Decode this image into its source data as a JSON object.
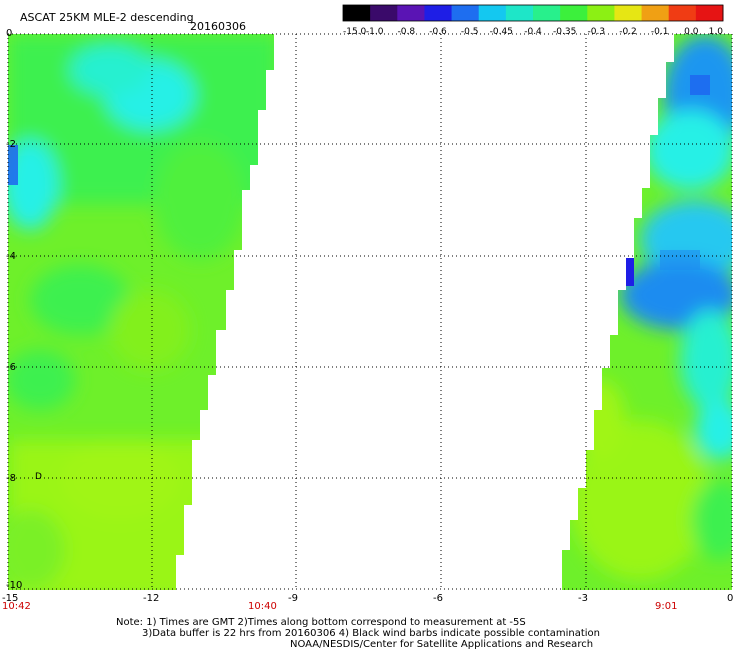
{
  "header": {
    "title": "ASCAT 25KM MLE-2 descending",
    "date": "20160306"
  },
  "colorbar": {
    "labels": [
      "-15.0",
      "-1.0",
      "-0.8",
      "-0.6",
      "-0.5",
      "-0.45",
      "-0.4",
      "-0.35",
      "-0.3",
      "-0.2",
      "-0.1",
      "0.0",
      "1.0"
    ],
    "colors": [
      "#000000",
      "#3a0a6a",
      "#5a14b4",
      "#1e1ee6",
      "#1e6ef0",
      "#14c8f0",
      "#1ee6c8",
      "#28f08c",
      "#3cf03c",
      "#8cf014",
      "#e6e614",
      "#f0a014",
      "#f03c14",
      "#e61414"
    ]
  },
  "axes": {
    "x_labels": [
      "-15",
      "-12",
      "-9",
      "-6",
      "-3",
      "0"
    ],
    "y_labels": [
      "0",
      "-2",
      "-4",
      "-6",
      "-8",
      "-10"
    ],
    "time_labels": [
      "10:42",
      "10:40",
      "9:01"
    ]
  },
  "map": {
    "lon_range": [
      -15,
      0
    ],
    "lat_range": [
      -10,
      0
    ],
    "marker": "D",
    "colors": {
      "yellow_green": "#9af514",
      "lime": "#6ef02a",
      "green": "#3cf050",
      "cyan": "#28f0e6",
      "sky": "#1eaaf0",
      "blue": "#1e64f0",
      "deep_blue": "#1e1ee6"
    }
  },
  "footer": {
    "line1": "Note: 1) Times are GMT 2)Times along bottom correspond to measurement at -5S",
    "line2": "3)Data buffer is 22 hrs from 20160306 4) Black wind barbs indicate possible contamination",
    "line3": "NOAA/NESDIS/Center for Satellite Applications and Research"
  }
}
